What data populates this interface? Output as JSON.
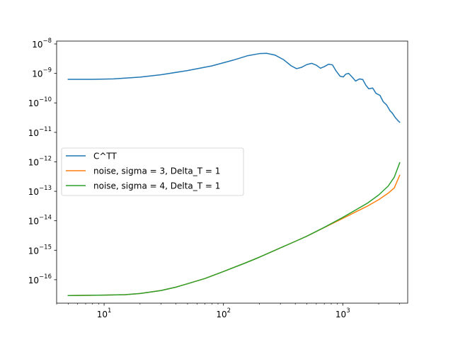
{
  "chart_data": {
    "type": "line",
    "title": "",
    "xlabel": "",
    "ylabel": "",
    "xscale": "log",
    "yscale": "log",
    "xlim": [
      4,
      3500
    ],
    "ylim": [
      1.6e-17,
      1.25e-08
    ],
    "grid": false,
    "legend_position": "center-left",
    "x_ticks": [
      {
        "value": 10,
        "base": "10",
        "exp": "1"
      },
      {
        "value": 100,
        "base": "10",
        "exp": "2"
      },
      {
        "value": 1000,
        "base": "10",
        "exp": "3"
      }
    ],
    "y_ticks": [
      {
        "value": 1e-16,
        "base": "10",
        "exp": "−16"
      },
      {
        "value": 1e-15,
        "base": "10",
        "exp": "−15"
      },
      {
        "value": 1e-14,
        "base": "10",
        "exp": "−14"
      },
      {
        "value": 1e-13,
        "base": "10",
        "exp": "−13"
      },
      {
        "value": 1e-12,
        "base": "10",
        "exp": "−12"
      },
      {
        "value": 1e-11,
        "base": "10",
        "exp": "−11"
      },
      {
        "value": 1e-10,
        "base": "10",
        "exp": "−10"
      },
      {
        "value": 1e-09,
        "base": "10",
        "exp": "−9"
      },
      {
        "value": 1e-08,
        "base": "10",
        "exp": "−8"
      }
    ],
    "series": [
      {
        "name": "C^TT",
        "color": "#1f77b4",
        "points": [
          [
            5,
            6.3e-10
          ],
          [
            8,
            6.3e-10
          ],
          [
            12,
            6.5e-10
          ],
          [
            20,
            7.5e-10
          ],
          [
            30,
            9e-10
          ],
          [
            50,
            1.25e-09
          ],
          [
            80,
            1.8e-09
          ],
          [
            120,
            2.8e-09
          ],
          [
            160,
            4e-09
          ],
          [
            200,
            4.7e-09
          ],
          [
            230,
            4.8e-09
          ],
          [
            270,
            4.2e-09
          ],
          [
            320,
            2.9e-09
          ],
          [
            370,
            1.8e-09
          ],
          [
            410,
            1.45e-09
          ],
          [
            450,
            1.6e-09
          ],
          [
            500,
            2e-09
          ],
          [
            550,
            2.2e-09
          ],
          [
            600,
            1.9e-09
          ],
          [
            650,
            1.5e-09
          ],
          [
            700,
            1.7e-09
          ],
          [
            760,
            2.05e-09
          ],
          [
            820,
            1.95e-09
          ],
          [
            880,
            1.2e-09
          ],
          [
            950,
            8e-10
          ],
          [
            1010,
            7.6e-10
          ],
          [
            1060,
            9.5e-10
          ],
          [
            1120,
            1e-09
          ],
          [
            1200,
            7.5e-10
          ],
          [
            1280,
            5.5e-10
          ],
          [
            1380,
            6.5e-10
          ],
          [
            1470,
            6.2e-10
          ],
          [
            1560,
            4e-10
          ],
          [
            1650,
            3e-10
          ],
          [
            1780,
            3.2e-10
          ],
          [
            1900,
            2.1e-10
          ],
          [
            2050,
            1.8e-10
          ],
          [
            2180,
            1.1e-10
          ],
          [
            2330,
            8.5e-11
          ],
          [
            2480,
            5.5e-11
          ],
          [
            2600,
            4.5e-11
          ],
          [
            2750,
            3.2e-11
          ],
          [
            2900,
            2.5e-11
          ],
          [
            3000,
            2.2e-11
          ]
        ]
      },
      {
        "name": "noise, sigma = 3, Delta_T = 1",
        "color": "#ff7f0e",
        "points": [
          [
            5,
            2.9e-17
          ],
          [
            10,
            3e-17
          ],
          [
            15,
            3.1e-17
          ],
          [
            20,
            3.4e-17
          ],
          [
            30,
            4.3e-17
          ],
          [
            40,
            5.6e-17
          ],
          [
            50,
            7.3e-17
          ],
          [
            70,
            1.1e-16
          ],
          [
            100,
            1.9e-16
          ],
          [
            150,
            3.6e-16
          ],
          [
            200,
            5.8e-16
          ],
          [
            300,
            1.2e-15
          ],
          [
            400,
            2e-15
          ],
          [
            500,
            3e-15
          ],
          [
            700,
            5.9e-15
          ],
          [
            1000,
            1.2e-14
          ],
          [
            1300,
            2.05e-14
          ],
          [
            1600,
            3.1e-14
          ],
          [
            2000,
            5.2e-14
          ],
          [
            2400,
            8.6e-14
          ],
          [
            2700,
            1.3e-13
          ],
          [
            3000,
            3.5e-13
          ]
        ]
      },
      {
        "name": "noise, sigma = 4, Delta_T = 1",
        "color": "#2ca02c",
        "points": [
          [
            5,
            2.9e-17
          ],
          [
            10,
            3e-17
          ],
          [
            15,
            3.1e-17
          ],
          [
            20,
            3.4e-17
          ],
          [
            30,
            4.3e-17
          ],
          [
            40,
            5.6e-17
          ],
          [
            50,
            7.3e-17
          ],
          [
            70,
            1.1e-16
          ],
          [
            100,
            1.9e-16
          ],
          [
            150,
            3.6e-16
          ],
          [
            200,
            5.8e-16
          ],
          [
            300,
            1.2e-15
          ],
          [
            400,
            2e-15
          ],
          [
            500,
            3e-15
          ],
          [
            700,
            6e-15
          ],
          [
            1000,
            1.3e-14
          ],
          [
            1300,
            2.4e-14
          ],
          [
            1600,
            3.9e-14
          ],
          [
            2000,
            7.5e-14
          ],
          [
            2400,
            1.5e-13
          ],
          [
            2700,
            3e-13
          ],
          [
            3000,
            9.3e-13
          ]
        ]
      }
    ]
  }
}
